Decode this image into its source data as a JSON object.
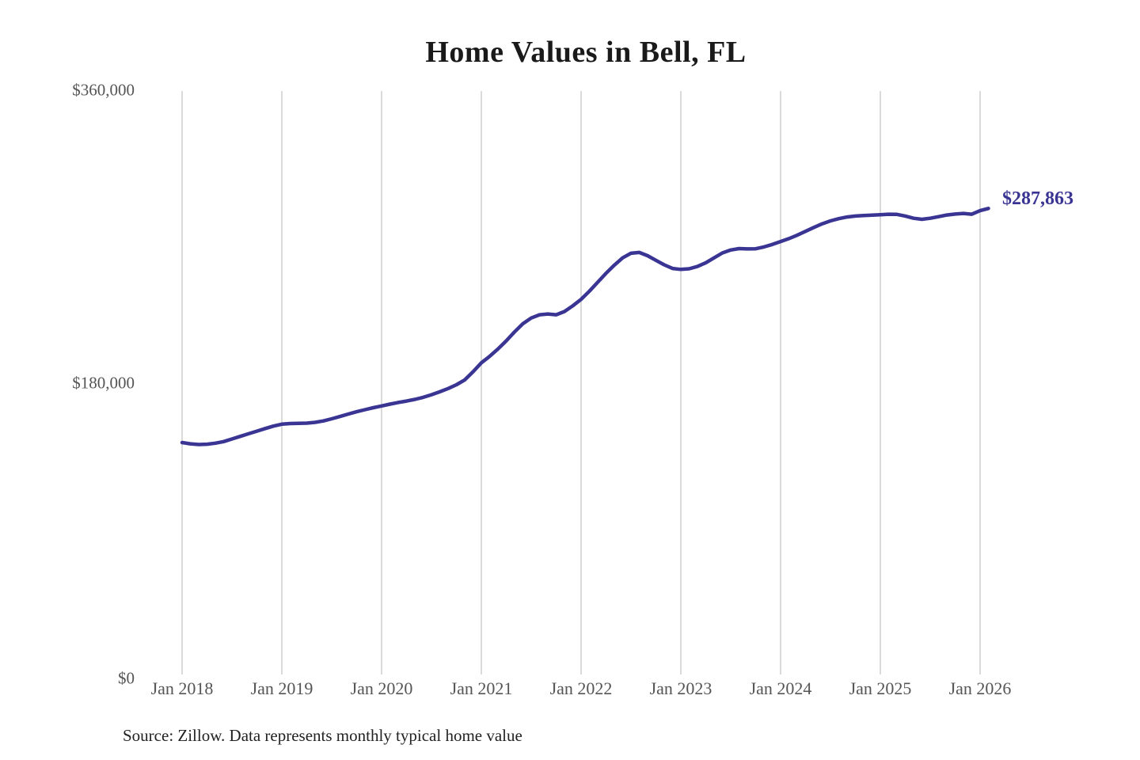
{
  "title": "Home Values in Bell, FL",
  "annotation": {
    "latest_value_label": "$287,863"
  },
  "source_note": "Source: Zillow. Data represents monthly typical home value",
  "colors": {
    "line": "#3a3493",
    "annotation_text": "#3a3493",
    "gridline": "#cdcdcd",
    "title_text": "#1a1a1a",
    "tick_text": "#555555",
    "source_text": "#222222",
    "background": "#ffffff"
  },
  "chart_data": {
    "type": "line",
    "title": "Home Values in Bell, FL",
    "xlabel": "",
    "ylabel": "",
    "legend": "none",
    "grid": "vertical-only",
    "ylim": [
      0,
      360000
    ],
    "y_ticks": [
      0,
      180000,
      360000
    ],
    "y_tick_labels": [
      "$0",
      "$180,000",
      "$360,000"
    ],
    "x_tick_labels": [
      "Jan 2018",
      "Jan 2019",
      "Jan 2020",
      "Jan 2021",
      "Jan 2022",
      "Jan 2023",
      "Jan 2024",
      "Jan 2025",
      "Jan 2026"
    ],
    "x_start_month": "Jan 2018",
    "x_end_month": "Feb 2026",
    "x_interval": "monthly",
    "latest_value": 287863,
    "series": [
      {
        "name": "Typical home value",
        "values": [
          144000,
          143200,
          142800,
          143000,
          143600,
          144600,
          146200,
          147800,
          149400,
          151000,
          152600,
          154100,
          155300,
          155700,
          155800,
          155900,
          156400,
          157300,
          158600,
          160000,
          161500,
          162900,
          164200,
          165400,
          166500,
          167600,
          168600,
          169500,
          170500,
          171800,
          173400,
          175200,
          177200,
          179500,
          182500,
          187500,
          193000,
          197000,
          201500,
          206500,
          212000,
          217000,
          220500,
          222500,
          223000,
          222500,
          224500,
          228000,
          232000,
          237000,
          242500,
          248000,
          253000,
          257500,
          260300,
          260800,
          258800,
          256000,
          253200,
          251000,
          250400,
          250800,
          252200,
          254500,
          257500,
          260500,
          262300,
          263200,
          263000,
          263100,
          264200,
          265700,
          267500,
          269300,
          271400,
          273800,
          276200,
          278400,
          280200,
          281600,
          282600,
          283200,
          283500,
          283700,
          284000,
          284300,
          284200,
          283200,
          281800,
          281200,
          281800,
          282800,
          283800,
          284400,
          284800,
          284300,
          286500,
          287863
        ]
      }
    ]
  }
}
